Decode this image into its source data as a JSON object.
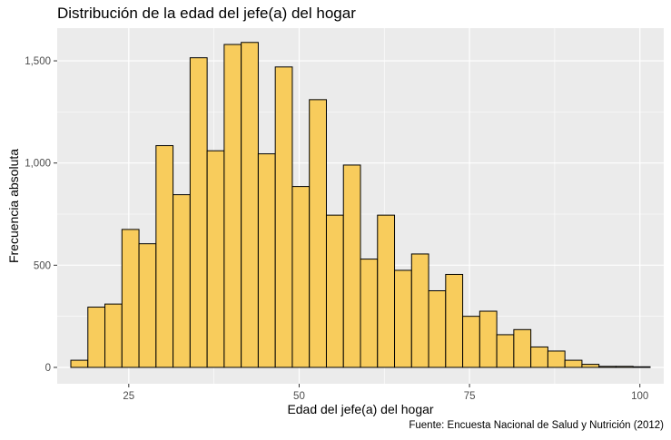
{
  "chart_data": {
    "type": "bar",
    "subtype": "histogram",
    "title": "Distribución de la edad del jefe(a) del hogar",
    "xlabel": "Edad del jefe(a) del hogar",
    "ylabel": "Frecuencia absoluta",
    "caption": "Fuente: Encuesta Nacional de Salud y Nutrición (2012)",
    "xlim": [
      14.5,
      103.5
    ],
    "ylim": [
      -80,
      1660
    ],
    "x_ticks": [
      25,
      50,
      75,
      100
    ],
    "x_tick_labels": [
      "25",
      "50",
      "75",
      "100"
    ],
    "y_ticks": [
      0,
      500,
      1000,
      1500
    ],
    "y_tick_labels": [
      "0",
      "500",
      "1,000",
      "1,500"
    ],
    "grid": true,
    "bin_width": 2.5,
    "bins_start": [
      16.5,
      19,
      21.5,
      24,
      26.5,
      29,
      31.5,
      34,
      36.5,
      39,
      41.5,
      44,
      46.5,
      49,
      51.5,
      54,
      56.5,
      59,
      61.5,
      64,
      66.5,
      69,
      71.5,
      74,
      76.5,
      79,
      81.5,
      84,
      86.5,
      89,
      91.5,
      94,
      96.5,
      99
    ],
    "values": [
      35,
      295,
      310,
      675,
      605,
      1085,
      845,
      1515,
      1060,
      1580,
      1590,
      1045,
      1470,
      885,
      1310,
      745,
      990,
      530,
      745,
      475,
      555,
      375,
      455,
      250,
      275,
      160,
      185,
      100,
      80,
      35,
      15,
      5,
      5,
      3
    ],
    "bar_fill": "#f8cc5c",
    "bar_stroke": "#000000",
    "panel_background": "#ebebeb",
    "grid_color": "#ffffff"
  }
}
